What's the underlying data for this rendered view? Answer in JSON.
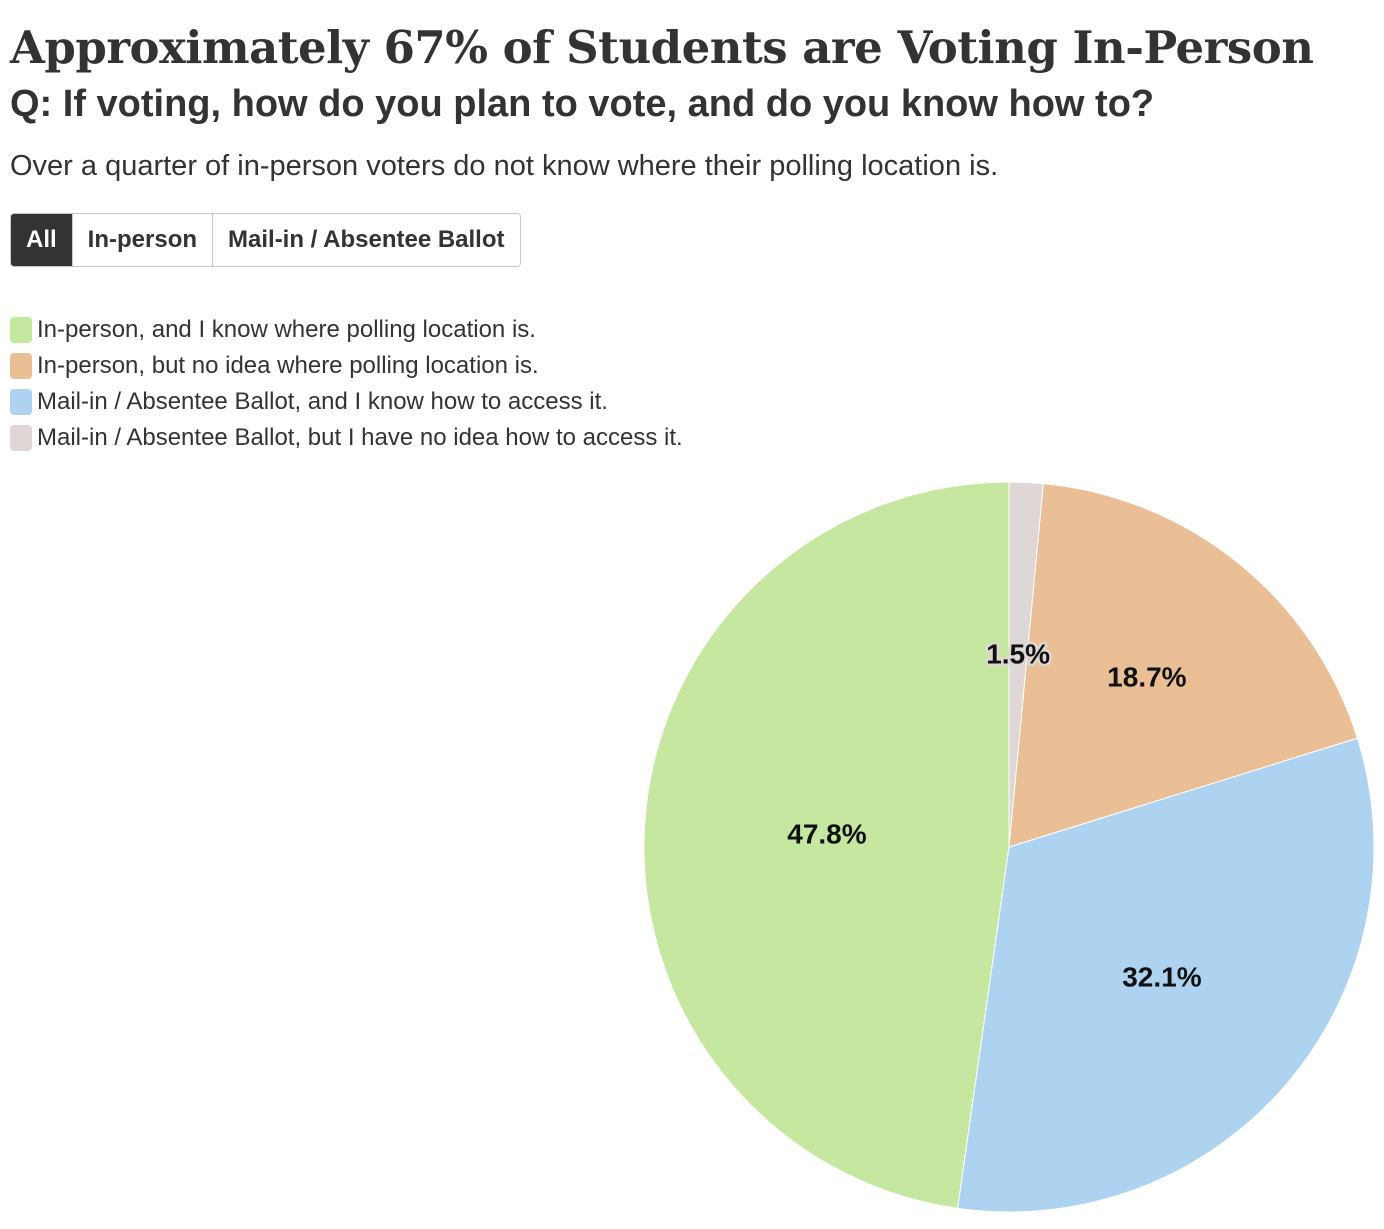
{
  "header": {
    "title": "Approximately 67% of Students are Voting In-Person",
    "subtitle": "Q: If voting, how do you plan to vote, and do you know how to?",
    "description": "Over a quarter of in-person voters do not know where their polling location is."
  },
  "filters": {
    "selected": "All",
    "items": [
      {
        "label": "All"
      },
      {
        "label": "In-person"
      },
      {
        "label": "Mail-in / Absentee Ballot"
      }
    ]
  },
  "chart_data": {
    "type": "pie",
    "title": "",
    "start_angle_deg": 0,
    "direction": "counterclockwise",
    "legend_position": "top-left",
    "slices": [
      {
        "name": "In-person, and I know where polling location is.",
        "value": 47.8,
        "label": "47.8%",
        "color": "#c5e7a0"
      },
      {
        "name": "Mail-in / Absentee Ballot, and I know how to access it.",
        "value": 32.1,
        "label": "32.1%",
        "color": "#aed3f1"
      },
      {
        "name": "In-person, but no idea where polling location is.",
        "value": 18.7,
        "label": "18.7%",
        "color": "#ebbf96"
      },
      {
        "name": "Mail-in / Absentee Ballot, but I have no idea how to access it.",
        "value": 1.5,
        "label": "1.5%",
        "color": "#dfd6d6"
      }
    ],
    "legend_order": [
      "In-person, and I know where polling location is.",
      "In-person, but no idea where polling location is.",
      "Mail-in / Absentee Ballot, and I know how to access it.",
      "Mail-in / Absentee Ballot, but I have no idea how to access it."
    ]
  }
}
